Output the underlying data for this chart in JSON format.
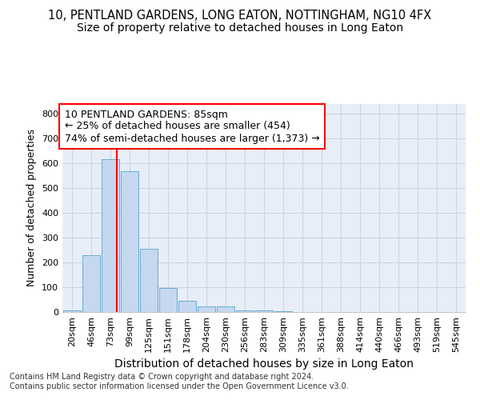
{
  "title1": "10, PENTLAND GARDENS, LONG EATON, NOTTINGHAM, NG10 4FX",
  "title2": "Size of property relative to detached houses in Long Eaton",
  "xlabel": "Distribution of detached houses by size in Long Eaton",
  "ylabel": "Number of detached properties",
  "bin_labels": [
    "20sqm",
    "46sqm",
    "73sqm",
    "99sqm",
    "125sqm",
    "151sqm",
    "178sqm",
    "204sqm",
    "230sqm",
    "256sqm",
    "283sqm",
    "309sqm",
    "335sqm",
    "361sqm",
    "388sqm",
    "414sqm",
    "440sqm",
    "466sqm",
    "493sqm",
    "519sqm",
    "545sqm"
  ],
  "bar_values": [
    8,
    228,
    618,
    568,
    254,
    97,
    46,
    22,
    22,
    8,
    5,
    2,
    1,
    0,
    0,
    0,
    0,
    0,
    0,
    0,
    0
  ],
  "bar_color": "#c5d8f0",
  "bar_edge_color": "#6aabd2",
  "property_line_x": 2.35,
  "annotation_line1": "10 PENTLAND GARDENS: 85sqm",
  "annotation_line2": "← 25% of detached houses are smaller (454)",
  "annotation_line3": "74% of semi-detached houses are larger (1,373) →",
  "annotation_box_color": "white",
  "annotation_box_edge_color": "red",
  "red_line_color": "red",
  "ylim": [
    0,
    840
  ],
  "yticks": [
    0,
    100,
    200,
    300,
    400,
    500,
    600,
    700,
    800
  ],
  "grid_color": "#c8d4e8",
  "bg_color": "#e8eef8",
  "footnote": "Contains HM Land Registry data © Crown copyright and database right 2024.\nContains public sector information licensed under the Open Government Licence v3.0.",
  "title1_fontsize": 10.5,
  "title2_fontsize": 10,
  "xlabel_fontsize": 10,
  "ylabel_fontsize": 9,
  "tick_fontsize": 8,
  "annotation_fontsize": 9,
  "footnote_fontsize": 7
}
